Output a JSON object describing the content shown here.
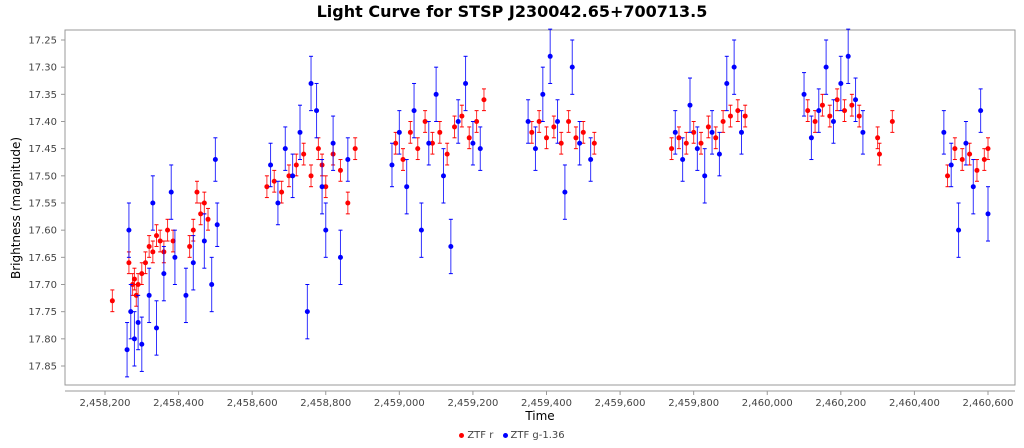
{
  "chart_data": {
    "type": "scatter",
    "title": "Light Curve for STSP J230042.65+700713.5",
    "xlabel": "Time",
    "ylabel": "Brightness (magnitude)",
    "xlim": [
      2458110,
      2460700
    ],
    "ylim": [
      17.23,
      17.88
    ],
    "y_inverted": true,
    "xticks": [
      2458200,
      2458400,
      2458600,
      2458800,
      2459000,
      2459200,
      2459400,
      2459600,
      2459800,
      2460000,
      2460200,
      2460400,
      2460600
    ],
    "xtick_labels": [
      "2,458,200",
      "2,458,400",
      "2,458,600",
      "2,458,800",
      "2,459,000",
      "2,459,200",
      "2,459,400",
      "2,459,600",
      "2,459,800",
      "2,460,000",
      "2,460,200",
      "2,460,400",
      "2,460,600"
    ],
    "yticks": [
      17.25,
      17.3,
      17.35,
      17.4,
      17.45,
      17.5,
      17.55,
      17.6,
      17.65,
      17.7,
      17.75,
      17.8,
      17.85
    ],
    "ytick_labels": [
      "17.25",
      "17.30",
      "17.35",
      "17.40",
      "17.45",
      "17.50",
      "17.55",
      "17.60",
      "17.65",
      "17.70",
      "17.75",
      "17.80",
      "17.85"
    ],
    "grid": false,
    "legend_position": "bottom",
    "series": [
      {
        "name": "ZTF r",
        "color": "#ff0000",
        "points": [
          [
            2458220,
            17.73,
            0.02
          ],
          [
            2458265,
            17.66,
            0.02
          ],
          [
            2458275,
            17.7,
            0.02
          ],
          [
            2458280,
            17.69,
            0.02
          ],
          [
            2458285,
            17.72,
            0.02
          ],
          [
            2458290,
            17.7,
            0.02
          ],
          [
            2458300,
            17.68,
            0.02
          ],
          [
            2458310,
            17.66,
            0.02
          ],
          [
            2458320,
            17.63,
            0.02
          ],
          [
            2458330,
            17.64,
            0.02
          ],
          [
            2458340,
            17.61,
            0.02
          ],
          [
            2458350,
            17.62,
            0.02
          ],
          [
            2458360,
            17.64,
            0.02
          ],
          [
            2458370,
            17.6,
            0.02
          ],
          [
            2458385,
            17.62,
            0.02
          ],
          [
            2458430,
            17.63,
            0.02
          ],
          [
            2458440,
            17.6,
            0.02
          ],
          [
            2458450,
            17.53,
            0.02
          ],
          [
            2458460,
            17.57,
            0.02
          ],
          [
            2458470,
            17.55,
            0.02
          ],
          [
            2458480,
            17.58,
            0.02
          ],
          [
            2458640,
            17.52,
            0.02
          ],
          [
            2458660,
            17.51,
            0.02
          ],
          [
            2458680,
            17.53,
            0.02
          ],
          [
            2458700,
            17.5,
            0.02
          ],
          [
            2458720,
            17.48,
            0.02
          ],
          [
            2458740,
            17.46,
            0.02
          ],
          [
            2458760,
            17.5,
            0.02
          ],
          [
            2458780,
            17.45,
            0.02
          ],
          [
            2458790,
            17.48,
            0.02
          ],
          [
            2458800,
            17.52,
            0.02
          ],
          [
            2458820,
            17.46,
            0.02
          ],
          [
            2458840,
            17.49,
            0.02
          ],
          [
            2458860,
            17.55,
            0.02
          ],
          [
            2458880,
            17.45,
            0.02
          ],
          [
            2458990,
            17.44,
            0.02
          ],
          [
            2459010,
            17.47,
            0.02
          ],
          [
            2459030,
            17.42,
            0.02
          ],
          [
            2459050,
            17.45,
            0.02
          ],
          [
            2459070,
            17.4,
            0.02
          ],
          [
            2459090,
            17.44,
            0.02
          ],
          [
            2459110,
            17.42,
            0.02
          ],
          [
            2459130,
            17.46,
            0.02
          ],
          [
            2459150,
            17.41,
            0.02
          ],
          [
            2459170,
            17.39,
            0.02
          ],
          [
            2459190,
            17.43,
            0.02
          ],
          [
            2459210,
            17.4,
            0.02
          ],
          [
            2459230,
            17.36,
            0.02
          ],
          [
            2459360,
            17.42,
            0.02
          ],
          [
            2459380,
            17.4,
            0.02
          ],
          [
            2459400,
            17.43,
            0.02
          ],
          [
            2459420,
            17.41,
            0.02
          ],
          [
            2459440,
            17.44,
            0.02
          ],
          [
            2459460,
            17.4,
            0.02
          ],
          [
            2459480,
            17.43,
            0.02
          ],
          [
            2459500,
            17.42,
            0.02
          ],
          [
            2459530,
            17.44,
            0.02
          ],
          [
            2459740,
            17.45,
            0.02
          ],
          [
            2459760,
            17.43,
            0.02
          ],
          [
            2459780,
            17.44,
            0.02
          ],
          [
            2459800,
            17.42,
            0.02
          ],
          [
            2459820,
            17.44,
            0.02
          ],
          [
            2459840,
            17.41,
            0.02
          ],
          [
            2459860,
            17.43,
            0.02
          ],
          [
            2459880,
            17.4,
            0.02
          ],
          [
            2459900,
            17.39,
            0.02
          ],
          [
            2459920,
            17.38,
            0.02
          ],
          [
            2459940,
            17.39,
            0.02
          ],
          [
            2460110,
            17.38,
            0.02
          ],
          [
            2460130,
            17.4,
            0.02
          ],
          [
            2460150,
            17.37,
            0.02
          ],
          [
            2460170,
            17.39,
            0.02
          ],
          [
            2460190,
            17.36,
            0.02
          ],
          [
            2460210,
            17.38,
            0.02
          ],
          [
            2460230,
            17.37,
            0.02
          ],
          [
            2460250,
            17.39,
            0.02
          ],
          [
            2460300,
            17.43,
            0.02
          ],
          [
            2460305,
            17.46,
            0.02
          ],
          [
            2460340,
            17.4,
            0.02
          ],
          [
            2460490,
            17.5,
            0.02
          ],
          [
            2460510,
            17.45,
            0.02
          ],
          [
            2460530,
            17.47,
            0.02
          ],
          [
            2460550,
            17.46,
            0.02
          ],
          [
            2460570,
            17.49,
            0.02
          ],
          [
            2460590,
            17.47,
            0.02
          ],
          [
            2460600,
            17.45,
            0.02
          ]
        ]
      },
      {
        "name": "ZTF g-1.36",
        "color": "#0000ff",
        "points": [
          [
            2458260,
            17.82,
            0.05
          ],
          [
            2458265,
            17.6,
            0.05
          ],
          [
            2458270,
            17.75,
            0.05
          ],
          [
            2458280,
            17.8,
            0.05
          ],
          [
            2458290,
            17.77,
            0.05
          ],
          [
            2458300,
            17.81,
            0.05
          ],
          [
            2458320,
            17.72,
            0.05
          ],
          [
            2458330,
            17.55,
            0.05
          ],
          [
            2458340,
            17.78,
            0.05
          ],
          [
            2458360,
            17.68,
            0.05
          ],
          [
            2458380,
            17.53,
            0.05
          ],
          [
            2458390,
            17.65,
            0.05
          ],
          [
            2458420,
            17.72,
            0.05
          ],
          [
            2458440,
            17.66,
            0.05
          ],
          [
            2458470,
            17.62,
            0.05
          ],
          [
            2458490,
            17.7,
            0.05
          ],
          [
            2458500,
            17.47,
            0.04
          ],
          [
            2458505,
            17.59,
            0.04
          ],
          [
            2458650,
            17.48,
            0.04
          ],
          [
            2458670,
            17.55,
            0.04
          ],
          [
            2458690,
            17.45,
            0.04
          ],
          [
            2458710,
            17.5,
            0.04
          ],
          [
            2458730,
            17.42,
            0.05
          ],
          [
            2458750,
            17.75,
            0.05
          ],
          [
            2458760,
            17.33,
            0.05
          ],
          [
            2458775,
            17.38,
            0.05
          ],
          [
            2458790,
            17.52,
            0.05
          ],
          [
            2458800,
            17.6,
            0.05
          ],
          [
            2458820,
            17.44,
            0.05
          ],
          [
            2458840,
            17.65,
            0.05
          ],
          [
            2458860,
            17.47,
            0.04
          ],
          [
            2458980,
            17.48,
            0.04
          ],
          [
            2459000,
            17.42,
            0.04
          ],
          [
            2459020,
            17.52,
            0.05
          ],
          [
            2459040,
            17.38,
            0.05
          ],
          [
            2459060,
            17.6,
            0.05
          ],
          [
            2459080,
            17.44,
            0.04
          ],
          [
            2459100,
            17.35,
            0.05
          ],
          [
            2459120,
            17.5,
            0.05
          ],
          [
            2459140,
            17.63,
            0.05
          ],
          [
            2459160,
            17.4,
            0.04
          ],
          [
            2459180,
            17.33,
            0.05
          ],
          [
            2459200,
            17.44,
            0.04
          ],
          [
            2459220,
            17.45,
            0.04
          ],
          [
            2459350,
            17.4,
            0.04
          ],
          [
            2459370,
            17.45,
            0.04
          ],
          [
            2459390,
            17.35,
            0.05
          ],
          [
            2459410,
            17.28,
            0.05
          ],
          [
            2459430,
            17.4,
            0.04
          ],
          [
            2459450,
            17.53,
            0.05
          ],
          [
            2459470,
            17.3,
            0.05
          ],
          [
            2459490,
            17.44,
            0.04
          ],
          [
            2459520,
            17.47,
            0.04
          ],
          [
            2459750,
            17.42,
            0.04
          ],
          [
            2459770,
            17.47,
            0.04
          ],
          [
            2459790,
            17.37,
            0.05
          ],
          [
            2459810,
            17.45,
            0.04
          ],
          [
            2459830,
            17.5,
            0.05
          ],
          [
            2459850,
            17.42,
            0.04
          ],
          [
            2459870,
            17.46,
            0.04
          ],
          [
            2459890,
            17.33,
            0.05
          ],
          [
            2459910,
            17.3,
            0.05
          ],
          [
            2459930,
            17.42,
            0.04
          ],
          [
            2460100,
            17.35,
            0.04
          ],
          [
            2460120,
            17.43,
            0.04
          ],
          [
            2460140,
            17.38,
            0.04
          ],
          [
            2460160,
            17.3,
            0.05
          ],
          [
            2460180,
            17.4,
            0.04
          ],
          [
            2460200,
            17.33,
            0.05
          ],
          [
            2460220,
            17.28,
            0.05
          ],
          [
            2460240,
            17.36,
            0.04
          ],
          [
            2460260,
            17.42,
            0.04
          ],
          [
            2460480,
            17.42,
            0.04
          ],
          [
            2460500,
            17.48,
            0.04
          ],
          [
            2460520,
            17.6,
            0.05
          ],
          [
            2460540,
            17.44,
            0.04
          ],
          [
            2460560,
            17.52,
            0.05
          ],
          [
            2460580,
            17.38,
            0.04
          ],
          [
            2460600,
            17.57,
            0.05
          ]
        ]
      }
    ]
  }
}
